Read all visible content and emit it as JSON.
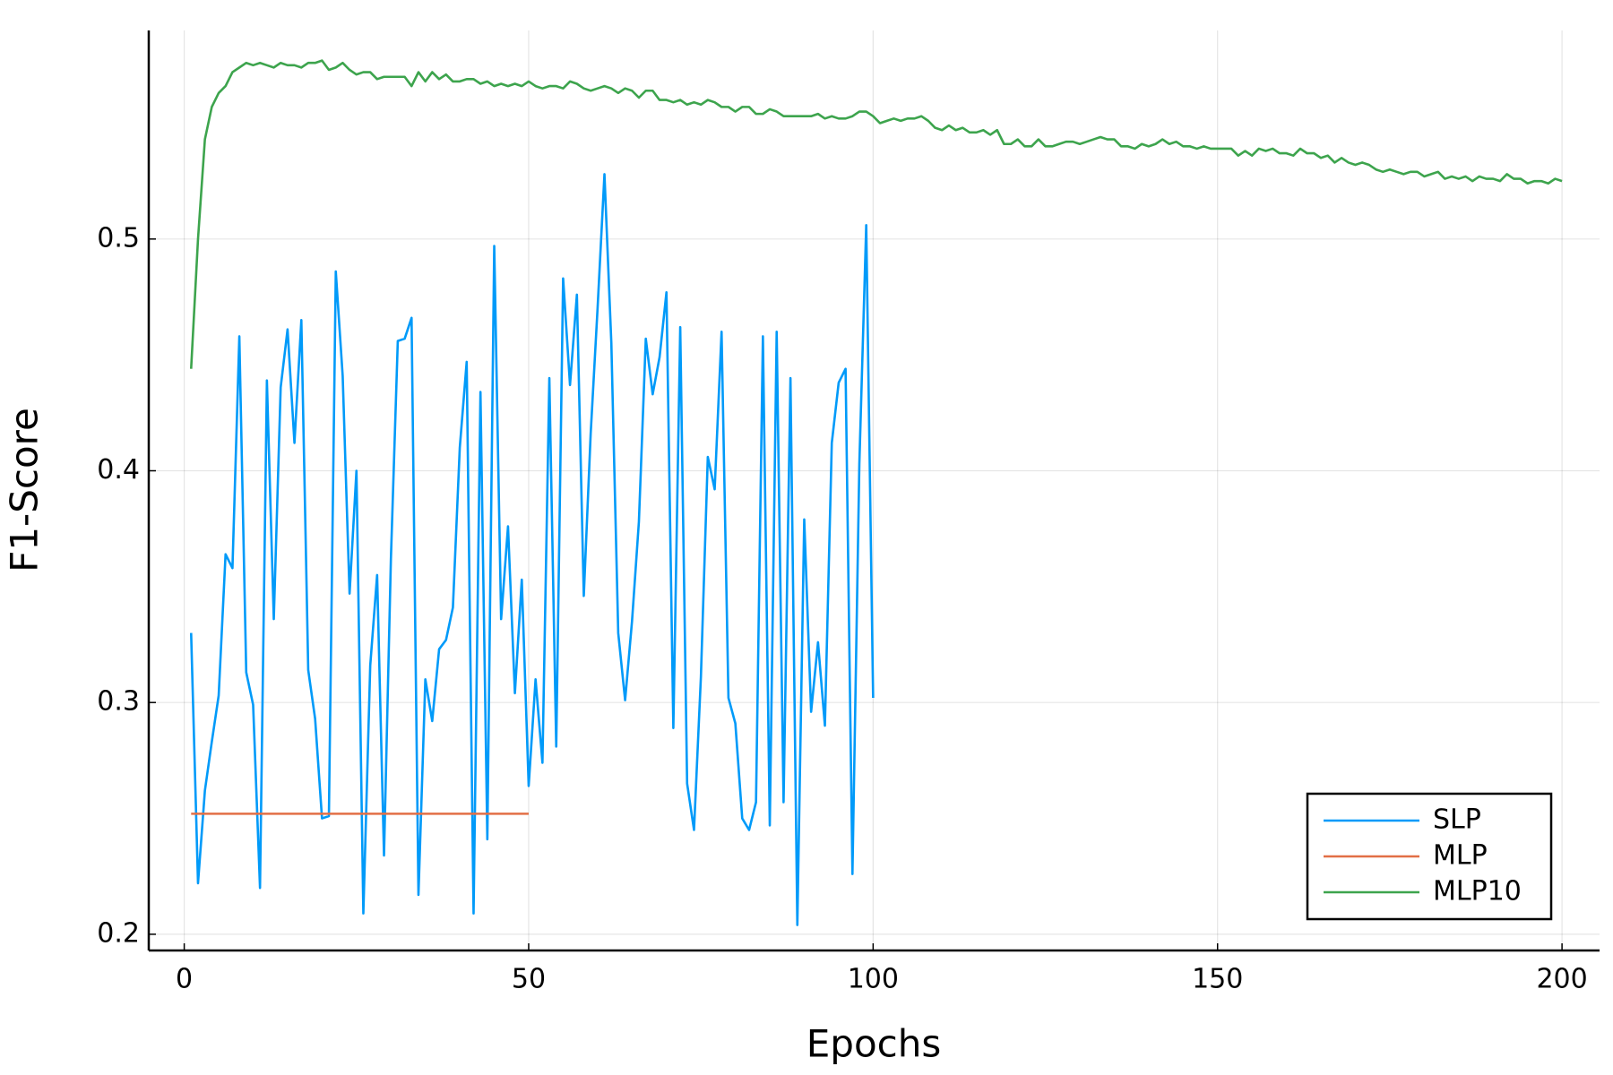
{
  "chart_data": {
    "type": "line",
    "x_label": "Epochs",
    "y_label": "F1-Score",
    "xlim": [
      -5.15,
      205.45
    ],
    "ylim": [
      0.193,
      0.59
    ],
    "xticks": [
      0,
      50,
      100,
      150,
      200
    ],
    "yticks": [
      0.2,
      0.3,
      0.4,
      0.5
    ],
    "grid": true,
    "legend_position": "bottom right",
    "series": [
      {
        "name": "SLP",
        "color": "#009af9",
        "x": [
          1,
          2,
          3,
          4,
          5,
          6,
          7,
          8,
          9,
          10,
          11,
          12,
          13,
          14,
          15,
          16,
          17,
          18,
          19,
          20,
          21,
          22,
          23,
          24,
          25,
          26,
          27,
          28,
          29,
          30,
          31,
          32,
          33,
          34,
          35,
          36,
          37,
          38,
          39,
          40,
          41,
          42,
          43,
          44,
          45,
          46,
          47,
          48,
          49,
          50,
          51,
          52,
          53,
          54,
          55,
          56,
          57,
          58,
          59,
          60,
          61,
          62,
          63,
          64,
          65,
          66,
          67,
          68,
          69,
          70,
          71,
          72,
          73,
          74,
          75,
          76,
          77,
          78,
          79,
          80,
          81,
          82,
          83,
          84,
          85,
          86,
          87,
          88,
          89,
          90,
          91,
          92,
          93,
          94,
          95,
          96,
          97,
          98,
          99,
          100
        ],
        "values": [
          0.33,
          0.222,
          0.262,
          0.283,
          0.303,
          0.364,
          0.358,
          0.458,
          0.313,
          0.299,
          0.22,
          0.439,
          0.336,
          0.436,
          0.461,
          0.412,
          0.465,
          0.314,
          0.293,
          0.25,
          0.251,
          0.486,
          0.441,
          0.347,
          0.4,
          0.209,
          0.316,
          0.355,
          0.234,
          0.362,
          0.456,
          0.457,
          0.466,
          0.217,
          0.31,
          0.292,
          0.323,
          0.327,
          0.341,
          0.41,
          0.447,
          0.209,
          0.434,
          0.241,
          0.497,
          0.336,
          0.376,
          0.304,
          0.353,
          0.264,
          0.31,
          0.274,
          0.44,
          0.281,
          0.483,
          0.437,
          0.476,
          0.346,
          0.416,
          0.47,
          0.528,
          0.455,
          0.33,
          0.301,
          0.335,
          0.378,
          0.457,
          0.433,
          0.449,
          0.477,
          0.289,
          0.462,
          0.265,
          0.245,
          0.311,
          0.406,
          0.392,
          0.46,
          0.302,
          0.291,
          0.25,
          0.245,
          0.257,
          0.458,
          0.247,
          0.46,
          0.257,
          0.44,
          0.204,
          0.379,
          0.296,
          0.326,
          0.29,
          0.412,
          0.438,
          0.444,
          0.226,
          0.403,
          0.506,
          0.302
        ]
      },
      {
        "name": "MLP",
        "color": "#e26f46",
        "x": [
          1,
          2,
          3,
          4,
          5,
          6,
          7,
          8,
          9,
          10,
          11,
          12,
          13,
          14,
          15,
          16,
          17,
          18,
          19,
          20,
          21,
          22,
          23,
          24,
          25,
          26,
          27,
          28,
          29,
          30,
          31,
          32,
          33,
          34,
          35,
          36,
          37,
          38,
          39,
          40,
          41,
          42,
          43,
          44,
          45,
          46,
          47,
          48,
          49,
          50
        ],
        "values": [
          0.252,
          0.252,
          0.252,
          0.252,
          0.252,
          0.252,
          0.252,
          0.252,
          0.252,
          0.252,
          0.252,
          0.252,
          0.252,
          0.252,
          0.252,
          0.252,
          0.252,
          0.252,
          0.252,
          0.252,
          0.252,
          0.252,
          0.252,
          0.252,
          0.252,
          0.252,
          0.252,
          0.252,
          0.252,
          0.252,
          0.252,
          0.252,
          0.252,
          0.252,
          0.252,
          0.252,
          0.252,
          0.252,
          0.252,
          0.252,
          0.252,
          0.252,
          0.252,
          0.252,
          0.252,
          0.252,
          0.252,
          0.252,
          0.252,
          0.252
        ]
      },
      {
        "name": "MLP10",
        "color": "#3da44d",
        "x": [
          1,
          2,
          3,
          4,
          5,
          6,
          7,
          8,
          9,
          10,
          11,
          12,
          13,
          14,
          15,
          16,
          17,
          18,
          19,
          20,
          21,
          22,
          23,
          24,
          25,
          26,
          27,
          28,
          29,
          30,
          31,
          32,
          33,
          34,
          35,
          36,
          37,
          38,
          39,
          40,
          41,
          42,
          43,
          44,
          45,
          46,
          47,
          48,
          49,
          50,
          51,
          52,
          53,
          54,
          55,
          56,
          57,
          58,
          59,
          60,
          61,
          62,
          63,
          64,
          65,
          66,
          67,
          68,
          69,
          70,
          71,
          72,
          73,
          74,
          75,
          76,
          77,
          78,
          79,
          80,
          81,
          82,
          83,
          84,
          85,
          86,
          87,
          88,
          89,
          90,
          91,
          92,
          93,
          94,
          95,
          96,
          97,
          98,
          99,
          100,
          101,
          102,
          103,
          104,
          105,
          106,
          107,
          108,
          109,
          110,
          111,
          112,
          113,
          114,
          115,
          116,
          117,
          118,
          119,
          120,
          121,
          122,
          123,
          124,
          125,
          126,
          127,
          128,
          129,
          130,
          131,
          132,
          133,
          134,
          135,
          136,
          137,
          138,
          139,
          140,
          141,
          142,
          143,
          144,
          145,
          146,
          147,
          148,
          149,
          150,
          151,
          152,
          153,
          154,
          155,
          156,
          157,
          158,
          159,
          160,
          161,
          162,
          163,
          164,
          165,
          166,
          167,
          168,
          169,
          170,
          171,
          172,
          173,
          174,
          175,
          176,
          177,
          178,
          179,
          180,
          181,
          182,
          183,
          184,
          185,
          186,
          187,
          188,
          189,
          190,
          191,
          192,
          193,
          194,
          195,
          196,
          197,
          198,
          199,
          200
        ],
        "values": [
          0.444,
          0.5,
          0.543,
          0.557,
          0.563,
          0.566,
          0.572,
          0.574,
          0.576,
          0.575,
          0.576,
          0.575,
          0.574,
          0.576,
          0.575,
          0.575,
          0.574,
          0.576,
          0.576,
          0.577,
          0.573,
          0.574,
          0.576,
          0.573,
          0.571,
          0.572,
          0.572,
          0.569,
          0.57,
          0.57,
          0.57,
          0.57,
          0.566,
          0.572,
          0.568,
          0.572,
          0.569,
          0.571,
          0.568,
          0.568,
          0.569,
          0.569,
          0.567,
          0.568,
          0.566,
          0.567,
          0.566,
          0.567,
          0.566,
          0.568,
          0.566,
          0.565,
          0.566,
          0.566,
          0.565,
          0.568,
          0.567,
          0.565,
          0.564,
          0.565,
          0.566,
          0.565,
          0.563,
          0.565,
          0.564,
          0.561,
          0.564,
          0.564,
          0.56,
          0.56,
          0.559,
          0.56,
          0.558,
          0.559,
          0.558,
          0.56,
          0.559,
          0.557,
          0.557,
          0.555,
          0.557,
          0.557,
          0.554,
          0.554,
          0.556,
          0.555,
          0.553,
          0.553,
          0.553,
          0.553,
          0.553,
          0.554,
          0.552,
          0.553,
          0.552,
          0.552,
          0.553,
          0.555,
          0.555,
          0.553,
          0.55,
          0.551,
          0.552,
          0.551,
          0.552,
          0.552,
          0.553,
          0.551,
          0.548,
          0.547,
          0.549,
          0.547,
          0.548,
          0.546,
          0.546,
          0.547,
          0.545,
          0.547,
          0.541,
          0.541,
          0.543,
          0.54,
          0.54,
          0.543,
          0.54,
          0.54,
          0.541,
          0.542,
          0.542,
          0.541,
          0.542,
          0.543,
          0.544,
          0.543,
          0.543,
          0.54,
          0.54,
          0.539,
          0.541,
          0.54,
          0.541,
          0.543,
          0.541,
          0.542,
          0.54,
          0.54,
          0.539,
          0.54,
          0.539,
          0.539,
          0.539,
          0.539,
          0.536,
          0.538,
          0.536,
          0.539,
          0.538,
          0.539,
          0.537,
          0.537,
          0.536,
          0.539,
          0.537,
          0.537,
          0.535,
          0.536,
          0.533,
          0.535,
          0.533,
          0.532,
          0.533,
          0.532,
          0.53,
          0.529,
          0.53,
          0.529,
          0.528,
          0.529,
          0.529,
          0.527,
          0.528,
          0.529,
          0.526,
          0.527,
          0.526,
          0.527,
          0.525,
          0.527,
          0.526,
          0.526,
          0.525,
          0.528,
          0.526,
          0.526,
          0.524,
          0.525,
          0.525,
          0.524,
          0.526,
          0.525
        ]
      }
    ]
  }
}
